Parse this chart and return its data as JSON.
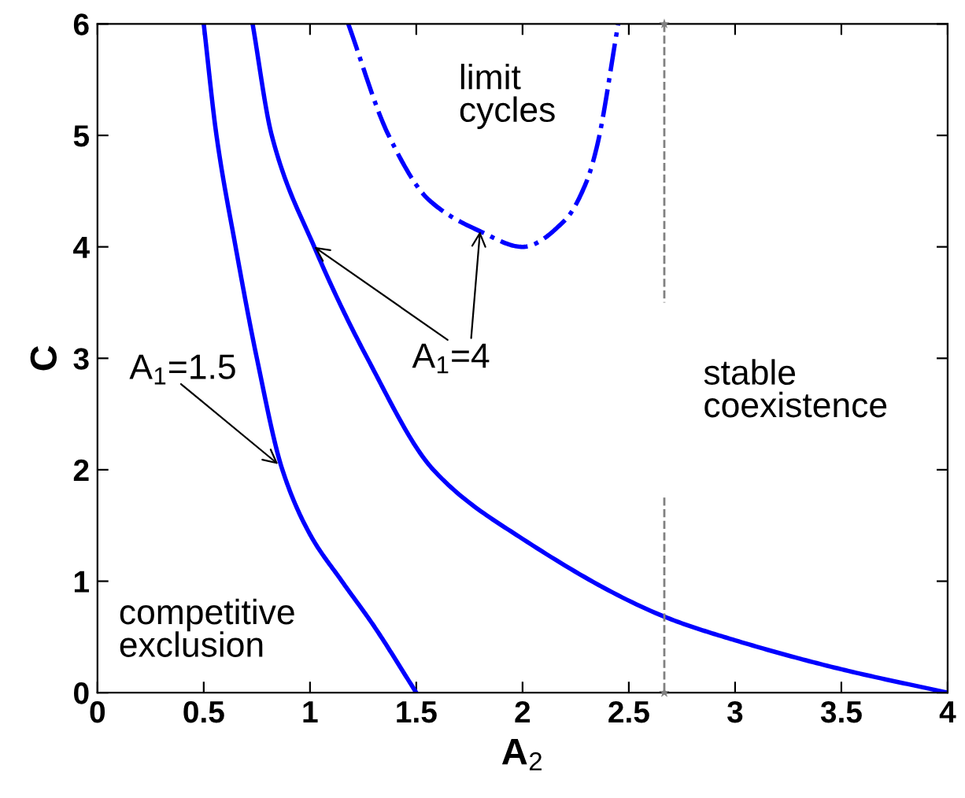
{
  "chart_data": {
    "type": "line",
    "xlabel": "A$_{2}$",
    "ylabel": "C",
    "xlim": [
      0,
      4
    ],
    "ylim": [
      0,
      6
    ],
    "xticks": [
      0,
      0.5,
      1,
      1.5,
      2,
      2.5,
      3,
      3.5,
      4
    ],
    "yticks": [
      0,
      1,
      2,
      3,
      4,
      5,
      6
    ],
    "grid": false,
    "legend": false,
    "series": [
      {
        "type": "line",
        "color": "#0000ff",
        "line_style": "solid",
        "x": [
          0.5,
          0.56,
          0.65,
          0.75,
          0.87,
          1.0,
          1.15,
          1.3,
          1.5
        ],
        "values": [
          6,
          5,
          4,
          3,
          2,
          1.42,
          1,
          0.6,
          0
        ]
      },
      {
        "type": "line",
        "color": "#0000ff",
        "line_style": "solid",
        "x": [
          0.73,
          0.82,
          1.02,
          1.27,
          1.58,
          2.0,
          2.67,
          3.0,
          3.5,
          4.0
        ],
        "values": [
          6,
          5,
          4,
          3,
          2,
          1.38,
          0.68,
          0.47,
          0.21,
          0
        ]
      },
      {
        "color": "#0000ff",
        "line_style": "dashdot",
        "x": [
          1.18,
          1.37,
          1.56,
          1.8,
          2.0,
          2.2,
          2.3,
          2.35,
          2.45
        ],
        "values": [
          6,
          5,
          4.42,
          4.14,
          4,
          4.24,
          4.58,
          4.9,
          6
        ]
      },
      {
        "color": "#808080",
        "line_style": "dashed",
        "x": [
          2.667,
          2.667
        ],
        "values": [
          6,
          3.5
        ]
      },
      {
        "color": "#808080",
        "line_style": "dashed",
        "x": [
          2.667,
          2.667
        ],
        "values": [
          1.75,
          0
        ]
      },
      {
        "type": "scatter",
        "color": "#808080",
        "marker": "star",
        "x": [
          2.667,
          2.667
        ],
        "values": [
          6,
          0
        ]
      }
    ],
    "annotations": [
      {
        "text": "A$_{1}$=1.5",
        "x": 0.85,
        "y": 2.05
      },
      {
        "text": "A$_{1}$=4",
        "x": 1.02,
        "y": 4
      },
      "limit\ncycles",
      "stable\ncoexistence",
      "competitive\nexclusion"
    ]
  }
}
